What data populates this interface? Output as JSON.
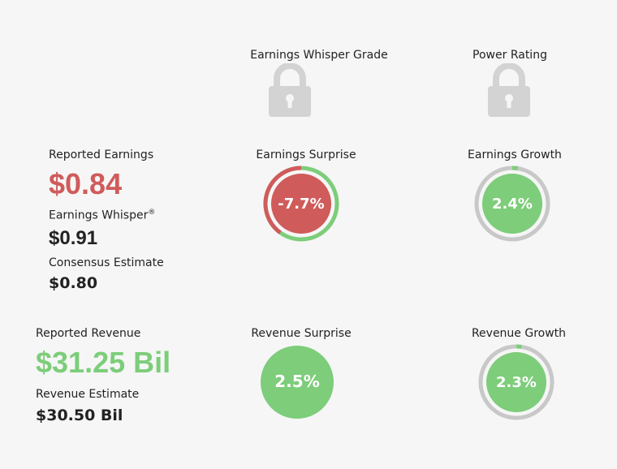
{
  "header": {
    "whisper_grade_label": "Earnings Whisper Grade",
    "power_rating_label": "Power Rating"
  },
  "earnings": {
    "reported_label": "Reported Earnings",
    "reported_value": "$0.84",
    "whisper_label": "Earnings Whisper",
    "whisper_reg": "®",
    "whisper_value": "$0.91",
    "consensus_label": "Consensus Estimate",
    "consensus_value": "$0.80",
    "surprise_label": "Earnings Surprise",
    "surprise_value": "-7.7%",
    "surprise_pct": -7.7,
    "growth_label": "Earnings Growth",
    "growth_value": "2.4%",
    "growth_pct": 2.4
  },
  "revenue": {
    "reported_label": "Reported Revenue",
    "reported_value": "$31.25 Bil",
    "estimate_label": "Revenue Estimate",
    "estimate_value": "$30.50 Bil",
    "surprise_label": "Revenue Surprise",
    "surprise_value": "2.5%",
    "surprise_pct": 2.5,
    "growth_label": "Revenue Growth",
    "growth_value": "2.3%",
    "growth_pct": 2.3
  },
  "colors": {
    "red": "#d05b5b",
    "green": "#7dcd7a",
    "gray_ring": "#c8c8c8",
    "lock": "#d3d3d3"
  },
  "icons": {
    "lock": "lock-icon"
  }
}
